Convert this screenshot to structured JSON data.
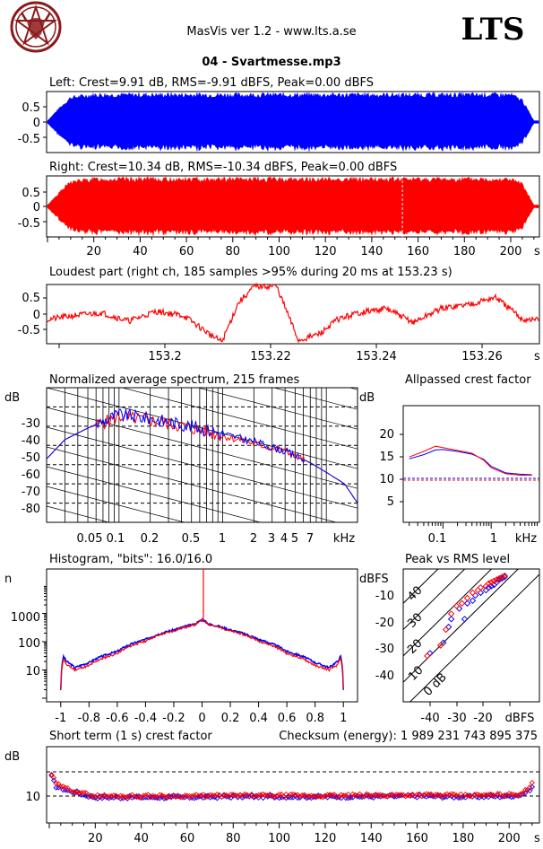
{
  "header": {
    "app_title": "MasVis ver 1.2 - www.lts.a.se",
    "brand": "LTS",
    "file_title": "04 - Svartmesse.mp3",
    "logo": "pentagram-logo"
  },
  "panels": {
    "left": {
      "title": "Left: Crest=9.91 dB, RMS=-9.91 dBFS, Peak=0.00 dBFS",
      "y_ticks": [
        "0.5",
        "0",
        "-0.5"
      ],
      "color": "#0000ff"
    },
    "right": {
      "title": "Right: Crest=10.34 dB, RMS=-10.34 dBFS, Peak=0.00 dBFS",
      "y_ticks": [
        "0.5",
        "0",
        "-0.5"
      ],
      "x_ticks": [
        "20",
        "40",
        "60",
        "80",
        "100",
        "120",
        "140",
        "160",
        "180",
        "200"
      ],
      "x_unit": "s",
      "color": "#ff0000"
    },
    "loudest": {
      "title": "Loudest part (right ch, 185 samples >95% during 20 ms at 153.23 s)",
      "y_ticks": [
        "0.5",
        "0",
        "-0.5"
      ],
      "x_ticks": [
        "153.2",
        "153.22",
        "153.24",
        "153.26"
      ],
      "x_unit": "s"
    },
    "spectrum": {
      "title": "Normalized average spectrum, 215 frames",
      "y_unit": "dB",
      "y_ticks": [
        "-30",
        "-40",
        "-50",
        "-60",
        "-70",
        "-80"
      ],
      "x_ticks": [
        "0.05",
        "0.1",
        "0.2",
        "0.5",
        "1",
        "2",
        "3",
        "4",
        "5",
        "7"
      ],
      "x_unit": "kHz"
    },
    "allpass": {
      "title": "Allpassed crest factor",
      "y_unit": "dB",
      "y_ticks": [
        "20",
        "15",
        "10",
        "5"
      ],
      "x_ticks": [
        "0.1",
        "1"
      ],
      "x_unit": "kHz"
    },
    "histogram": {
      "title": "Histogram, \"bits\": 16.0/16.0",
      "y_unit": "n",
      "y_ticks": [
        "1000",
        "100",
        "10"
      ],
      "x_ticks": [
        "-1",
        "-0.8",
        "-0.6",
        "-0.4",
        "-0.2",
        "0",
        "0.2",
        "0.4",
        "0.6",
        "0.8",
        "1"
      ]
    },
    "peak_rms": {
      "title": "Peak vs RMS level",
      "y_unit": "dBFS",
      "y_ticks": [
        "-10",
        "-20",
        "-30",
        "-40"
      ],
      "x_ticks": [
        "-40",
        "-30",
        "-20"
      ],
      "x_unit": "dBFS",
      "diag_labels": [
        "40",
        "30",
        "20",
        "10",
        "0 dB"
      ]
    },
    "short_term": {
      "title": "Short term (1 s) crest factor",
      "checksum": "Checksum (energy):  1 989 231 743 895 375",
      "y_unit": "dB",
      "y_ticks": [
        "10"
      ],
      "x_ticks": [
        "20",
        "40",
        "60",
        "80",
        "100",
        "120",
        "140",
        "160",
        "180",
        "200"
      ],
      "x_unit": "s"
    }
  },
  "chart_data": [
    {
      "type": "area",
      "title": "Left: Crest=9.91 dB, RMS=-9.91 dBFS, Peak=0.00 dBFS",
      "series": [
        {
          "name": "Left",
          "envelope_x": [
            0,
            5,
            10,
            20,
            200,
            205,
            210
          ],
          "envelope_y": [
            0.05,
            0.5,
            0.9,
            1.0,
            1.0,
            0.8,
            0.05
          ]
        }
      ],
      "xlim": [
        0,
        212
      ],
      "ylim": [
        -1,
        1
      ]
    },
    {
      "type": "area",
      "title": "Right: Crest=10.34 dB, RMS=-10.34 dBFS, Peak=0.00 dBFS",
      "series": [
        {
          "name": "Right",
          "envelope_x": [
            0,
            5,
            10,
            20,
            200,
            205,
            210
          ],
          "envelope_y": [
            0.05,
            0.5,
            0.9,
            1.0,
            1.0,
            0.8,
            0.05
          ]
        }
      ],
      "marker_x": 153.23,
      "xlim": [
        0,
        212
      ],
      "ylim": [
        -1,
        1
      ]
    },
    {
      "type": "line",
      "title": "Loudest part (right ch, 185 samples >95% during 20 ms at 153.23 s)",
      "x": [
        153.19,
        153.195,
        153.2,
        153.205,
        153.21,
        153.215,
        153.22,
        153.222,
        153.225,
        153.228,
        153.232,
        153.236,
        153.24,
        153.243,
        153.247,
        153.252,
        153.257,
        153.262,
        153.267,
        153.272,
        153.277
      ],
      "y": [
        -0.2,
        -0.05,
        0.05,
        -0.25,
        0.1,
        -0.05,
        -0.75,
        -1.0,
        0.4,
        1.0,
        1.0,
        -0.95,
        -0.7,
        -0.2,
        0.05,
        0.2,
        -0.3,
        0.2,
        0.35,
        0.6,
        -0.2
      ],
      "xlim": [
        153.19,
        153.28
      ],
      "ylim": [
        -1,
        1
      ]
    },
    {
      "type": "line",
      "title": "Normalized average spectrum, 215 frames",
      "log_x": true,
      "series": [
        {
          "name": "Left",
          "x": [
            0.02,
            0.03,
            0.05,
            0.08,
            0.1,
            0.2,
            0.5,
            1,
            2,
            4,
            7,
            10,
            15,
            20
          ],
          "y": [
            -57,
            -47,
            -41,
            -36,
            -34,
            -36,
            -40,
            -44,
            -48,
            -53,
            -59,
            -64,
            -70,
            -80
          ]
        },
        {
          "name": "Right",
          "x": [
            0.02,
            0.03,
            0.05,
            0.08,
            0.1,
            0.2,
            0.5,
            1,
            2,
            4,
            7,
            10,
            15,
            20
          ],
          "y": [
            -57,
            -47,
            -41,
            -37,
            -35,
            -37,
            -41,
            -45,
            -49,
            -53,
            -59,
            -64,
            -70,
            -80
          ]
        }
      ],
      "ylim": [
        -90,
        -20
      ]
    },
    {
      "type": "line",
      "title": "Allpassed crest factor",
      "log_x": true,
      "series": [
        {
          "name": "Left",
          "x": [
            0.02,
            0.04,
            0.07,
            0.1,
            0.2,
            0.4,
            0.7,
            1,
            2,
            4,
            7
          ],
          "y": [
            13.6,
            14.5,
            15.5,
            15.6,
            15.2,
            14.6,
            13.5,
            12,
            10.6,
            10.3,
            10.2
          ]
        },
        {
          "name": "Right",
          "x": [
            0.02,
            0.04,
            0.07,
            0.1,
            0.2,
            0.4,
            0.7,
            1,
            2,
            4,
            7
          ],
          "y": [
            14.0,
            15.2,
            16.3,
            16.0,
            15.4,
            14.8,
            13.3,
            11.7,
            10.4,
            10.1,
            10.1
          ]
        }
      ],
      "ref_lines": [
        9.9,
        10.3
      ],
      "ylim": [
        0,
        25
      ]
    },
    {
      "type": "line",
      "title": "Histogram, \"bits\": 16.0/16.0",
      "log_y": true,
      "series": [
        {
          "name": "Left",
          "x": [
            -1,
            -0.98,
            -0.96,
            -0.9,
            -0.8,
            -0.6,
            -0.4,
            -0.2,
            -0.05,
            0,
            0.05,
            0.2,
            0.4,
            0.6,
            0.8,
            0.9,
            0.96,
            0.98,
            1
          ],
          "y": [
            2,
            30,
            20,
            12,
            18,
            45,
            120,
            260,
            420,
            600,
            420,
            260,
            120,
            45,
            18,
            12,
            20,
            30,
            2
          ]
        },
        {
          "name": "Right",
          "x": [
            -1,
            -0.98,
            -0.96,
            -0.9,
            -0.8,
            -0.6,
            -0.4,
            -0.2,
            -0.05,
            0,
            0.05,
            0.2,
            0.4,
            0.6,
            0.8,
            0.9,
            0.96,
            0.98,
            1
          ],
          "y": [
            2,
            25,
            15,
            10,
            14,
            38,
            105,
            240,
            400,
            600,
            400,
            240,
            105,
            38,
            14,
            10,
            15,
            25,
            2
          ]
        }
      ],
      "xlim": [
        -1.1,
        1.1
      ]
    },
    {
      "type": "scatter",
      "title": "Peak vs RMS level",
      "series": [
        {
          "name": "Left",
          "x": [
            -41,
            -36,
            -34,
            -33,
            -30,
            -28,
            -27,
            -25,
            -24,
            -22,
            -20,
            -19,
            -18,
            -17,
            -16,
            -15,
            -14,
            -13
          ],
          "y": [
            -30,
            -26,
            -20,
            -17,
            -13,
            -17,
            -11,
            -10,
            -8,
            -7,
            -6,
            -5,
            -4.5,
            -4,
            -3,
            -2,
            -1.5,
            -1
          ]
        },
        {
          "name": "Right",
          "x": [
            -42,
            -37,
            -35,
            -33,
            -31,
            -29,
            -27,
            -25,
            -23,
            -22,
            -20,
            -19,
            -18,
            -17,
            -16,
            -15,
            -14,
            -13
          ],
          "y": [
            -31,
            -27,
            -21,
            -15,
            -12,
            -11,
            -9,
            -7,
            -6,
            -5,
            -4.5,
            -3.5,
            -3,
            -2.5,
            -2,
            -1.5,
            -1,
            -0.5
          ]
        }
      ],
      "xlim": [
        -50,
        0
      ],
      "ylim": [
        -50,
        0
      ]
    },
    {
      "type": "scatter",
      "title": "Short term (1 s) crest factor",
      "series": [
        {
          "name": "Left",
          "x": [
            1,
            3,
            6,
            9,
            12,
            15,
            20,
            40,
            60,
            80,
            100,
            120,
            140,
            160,
            180,
            200,
            205,
            208,
            210
          ],
          "y": [
            18,
            14,
            13,
            12,
            11.5,
            10.5,
            9.5,
            9.5,
            9.5,
            9.8,
            9.8,
            9.7,
            9.8,
            10,
            9.7,
            10,
            10.5,
            12,
            13.5
          ]
        },
        {
          "name": "Right",
          "x": [
            1,
            3,
            6,
            9,
            12,
            15,
            20,
            40,
            60,
            80,
            100,
            120,
            140,
            160,
            180,
            200,
            205,
            208,
            210
          ],
          "y": [
            19,
            15,
            13.5,
            12.5,
            12,
            11,
            10,
            10,
            10,
            10.2,
            10.2,
            10.1,
            10.3,
            10.5,
            10.2,
            10.5,
            11,
            12.5,
            15
          ]
        }
      ],
      "ref_lines": [
        10,
        20
      ],
      "xlim": [
        0,
        212
      ]
    }
  ]
}
